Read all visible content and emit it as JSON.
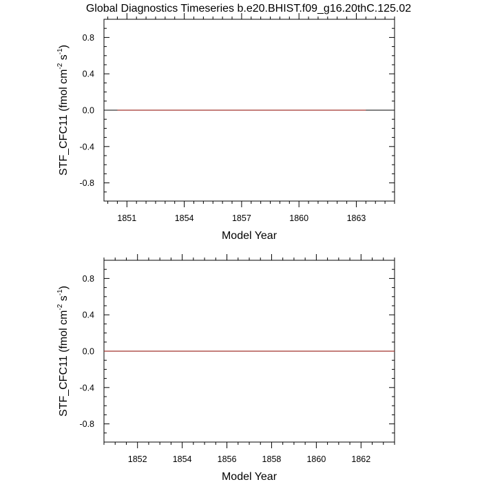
{
  "title": "Global Diagnostics Timeseries b.e20.BHIST.f09_g16.20thC.125.02",
  "chart_data": [
    {
      "type": "line",
      "xlabel": "Model Year",
      "ylabel": {
        "prefix": "STF_CFC11 (fmol cm",
        "exp1": "-2",
        "mid": " s",
        "exp2": "-1",
        "suffix": ")"
      },
      "xlim": [
        1849.8,
        1865.0
      ],
      "ylim": [
        -1.0,
        1.0
      ],
      "xticks": [
        1851,
        1854,
        1857,
        1860,
        1863
      ],
      "xtick_labels": [
        "1851",
        "1854",
        "1857",
        "1860",
        "1863"
      ],
      "yticks": [
        -0.8,
        -0.4,
        0.0,
        0.4,
        0.8
      ],
      "ytick_labels": [
        "-0.8",
        "-0.4",
        "0.0",
        "0.4",
        "0.8"
      ],
      "reference_line": {
        "y": 0.0,
        "color": "#000000"
      },
      "series": [
        {
          "x": [
            1850.5,
            1863.5
          ],
          "y": [
            0.0,
            0.0
          ],
          "color": "#a0302a"
        }
      ]
    },
    {
      "type": "line",
      "xlabel": "Model Year",
      "ylabel": {
        "prefix": "STF_CFC11 (fmol cm",
        "exp1": "-2",
        "mid": " s",
        "exp2": "-1",
        "suffix": ")"
      },
      "xlim": [
        1850.5,
        1863.5
      ],
      "ylim": [
        -1.0,
        1.0
      ],
      "xticks": [
        1852,
        1854,
        1856,
        1858,
        1860,
        1862
      ],
      "xtick_labels": [
        "1852",
        "1854",
        "1856",
        "1858",
        "1860",
        "1862"
      ],
      "yticks": [
        -0.8,
        -0.4,
        0.0,
        0.4,
        0.8
      ],
      "ytick_labels": [
        "-0.8",
        "-0.4",
        "0.0",
        "0.4",
        "0.8"
      ],
      "reference_line": {
        "y": 0.0,
        "color": "#000000"
      },
      "series": [
        {
          "x": [
            1850.5,
            1863.5
          ],
          "y": [
            0.0,
            0.0
          ],
          "color": "#a0302a"
        }
      ]
    }
  ]
}
